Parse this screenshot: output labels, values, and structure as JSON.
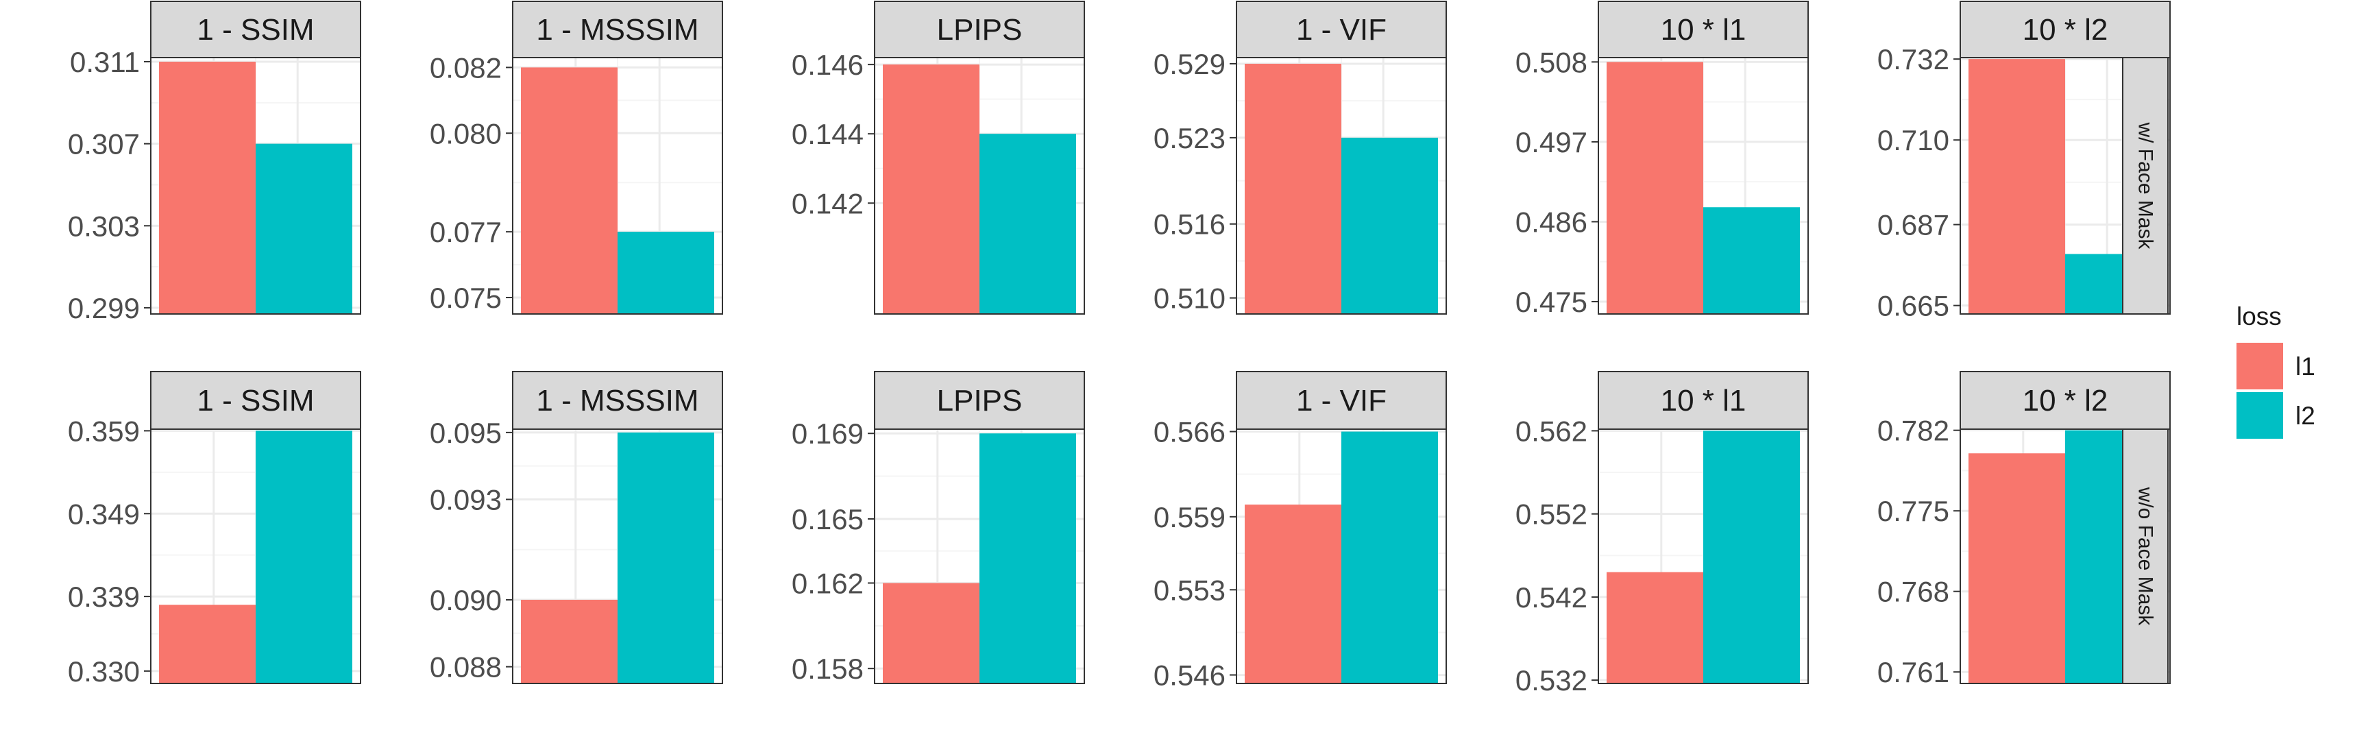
{
  "colors": {
    "l1": "#F8766D",
    "l2": "#00BFC4",
    "strip": "#D9D9D9",
    "grid_major": "#EBEBEB",
    "grid_minor": "#F5F5F5",
    "axis_text": "#4D4D4D",
    "text": "#1A1A1A"
  },
  "legend": {
    "title": "loss",
    "items": [
      {
        "label": "l1",
        "color": "#F8766D"
      },
      {
        "label": "l2",
        "color": "#00BFC4"
      }
    ]
  },
  "chart_data": {
    "type": "bar",
    "categories": [
      "l1",
      "l2"
    ],
    "row_strips": [
      "w/ Face Mask",
      "w/o Face Mask"
    ],
    "column_strips": [
      "1 - SSIM",
      "1 - MSSSIM",
      "LPIPS",
      "1 - VIF",
      "10 * l1",
      "10 * l2"
    ],
    "legend_placement": "right",
    "grid": true,
    "panels": [
      {
        "row": 0,
        "col": 0,
        "title": "1 - SSIM",
        "values": [
          0.311,
          0.307
        ],
        "ylim": [
          0.2987,
          0.3112
        ],
        "ticks": [
          "0.311",
          "0.307",
          "0.303",
          "0.299"
        ]
      },
      {
        "row": 0,
        "col": 1,
        "title": "1 - MSSSIM",
        "values": [
          0.082,
          0.077
        ],
        "ylim": [
          0.0745,
          0.0823
        ],
        "ticks": [
          "0.082",
          "0.080",
          "0.077",
          "0.075"
        ]
      },
      {
        "row": 0,
        "col": 2,
        "title": "LPIPS",
        "values": [
          0.146,
          0.144
        ],
        "ylim": [
          0.1388,
          0.1462
        ],
        "ticks": [
          "0.146",
          "0.144",
          "0.142"
        ]
      },
      {
        "row": 0,
        "col": 3,
        "title": "1 - VIF",
        "values": [
          0.529,
          0.523
        ],
        "ylim": [
          0.5087,
          0.5295
        ],
        "ticks": [
          "0.529",
          "0.523",
          "0.516",
          "0.510"
        ]
      },
      {
        "row": 0,
        "col": 4,
        "title": "10 * l1",
        "values": [
          0.508,
          0.488
        ],
        "ylim": [
          0.4733,
          0.5086
        ],
        "ticks": [
          "0.508",
          "0.497",
          "0.486",
          "0.475"
        ]
      },
      {
        "row": 0,
        "col": 5,
        "title": "10 * l2",
        "values": [
          0.732,
          0.679
        ],
        "ylim": [
          0.6627,
          0.7324
        ],
        "ticks": [
          "0.732",
          "0.710",
          "0.687",
          "0.665"
        ]
      },
      {
        "row": 1,
        "col": 0,
        "title": "1 - SSIM",
        "values": [
          0.338,
          0.359
        ],
        "ylim": [
          0.3285,
          0.3592
        ],
        "ticks": [
          "0.359",
          "0.349",
          "0.339",
          "0.330"
        ]
      },
      {
        "row": 1,
        "col": 1,
        "title": "1 - MSSSIM",
        "values": [
          0.09,
          0.095
        ],
        "ylim": [
          0.0875,
          0.0951
        ],
        "ticks": [
          "0.095",
          "0.093",
          "0.090",
          "0.088"
        ]
      },
      {
        "row": 1,
        "col": 2,
        "title": "LPIPS",
        "values": [
          0.162,
          0.169
        ],
        "ylim": [
          0.1573,
          0.1692
        ],
        "ticks": [
          "0.169",
          "0.165",
          "0.162",
          "0.158"
        ]
      },
      {
        "row": 1,
        "col": 3,
        "title": "1 - VIF",
        "values": [
          0.56,
          0.566
        ],
        "ylim": [
          0.5453,
          0.5662
        ],
        "ticks": [
          "0.566",
          "0.559",
          "0.553",
          "0.546"
        ]
      },
      {
        "row": 1,
        "col": 4,
        "title": "10 * l1",
        "values": [
          0.545,
          0.562
        ],
        "ylim": [
          0.5316,
          0.5622
        ],
        "ticks": [
          "0.562",
          "0.552",
          "0.542",
          "0.532"
        ]
      },
      {
        "row": 1,
        "col": 5,
        "title": "10 * l2",
        "values": [
          0.78,
          0.782
        ],
        "ylim": [
          0.76,
          0.7821
        ],
        "ticks": [
          "0.782",
          "0.775",
          "0.768",
          "0.761"
        ]
      }
    ]
  }
}
